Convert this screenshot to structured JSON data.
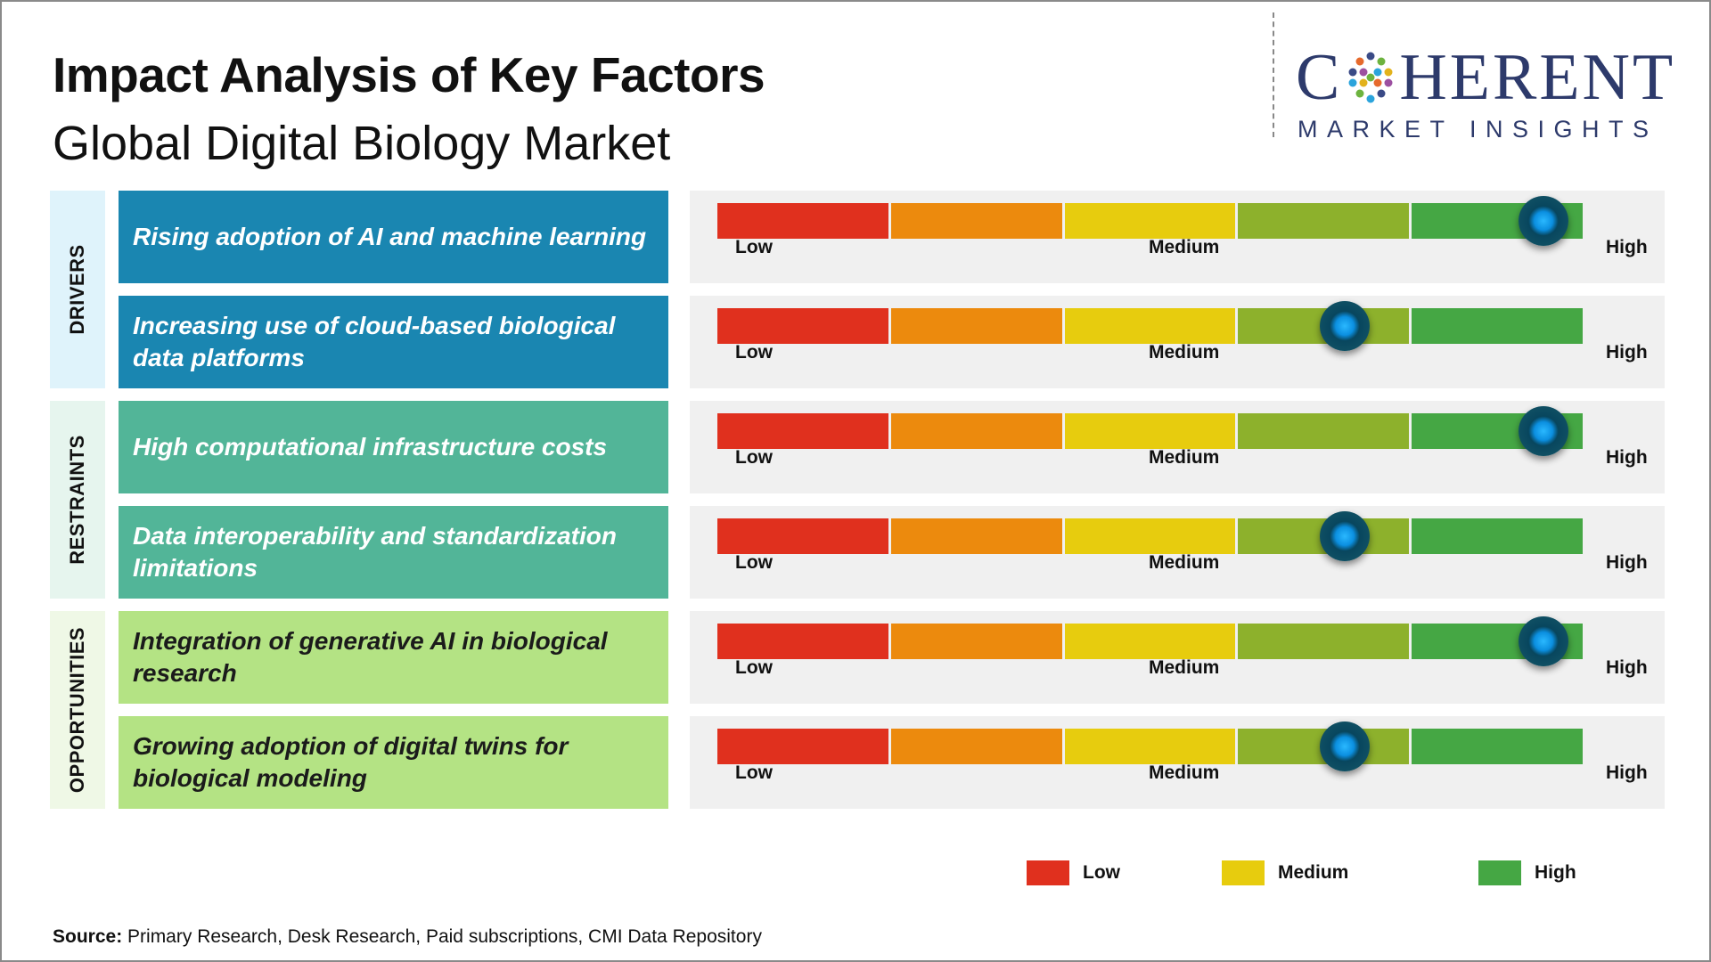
{
  "title": "Impact Analysis of Key Factors",
  "subtitle": "Global Digital Biology Market",
  "logo": {
    "word_left": "C",
    "word_right": "HERENT",
    "tagline": "MARKET INSIGHTS"
  },
  "colors": {
    "scale": [
      "#e0301e",
      "#ec8a0d",
      "#e7cc0e",
      "#8db12c",
      "#45a744"
    ],
    "drivers_box": "#1a86b1",
    "drivers_label_bg": "#dff3fb",
    "restraints_box": "#52b598",
    "restraints_label_bg": "#e6f5ee",
    "opportunities_box": "#b4e384",
    "opportunities_label_bg": "#eff8e6",
    "knob": "#0b8fe0"
  },
  "groups": [
    {
      "label": "DRIVERS",
      "factors": [
        {
          "text": "Rising adoption of AI and machine learning",
          "impact": 0.955
        },
        {
          "text": "Increasing use of cloud-based biological data platforms",
          "impact": 0.725
        }
      ]
    },
    {
      "label": "RESTRAINTS",
      "factors": [
        {
          "text": "High computational infrastructure costs",
          "impact": 0.955
        },
        {
          "text": "Data interoperability and standardization limitations",
          "impact": 0.725
        }
      ]
    },
    {
      "label": "OPPORTUNITIES",
      "factors": [
        {
          "text": "Integration of generative AI in biological research",
          "impact": 0.955
        },
        {
          "text": "Growing adoption of digital twins for biological modeling",
          "impact": 0.725
        }
      ]
    }
  ],
  "scale_labels": {
    "low": "Low",
    "medium": "Medium",
    "high": "High"
  },
  "legend": [
    {
      "label": "Low",
      "color": "#e0301e"
    },
    {
      "label": "Medium",
      "color": "#e7cc0e"
    },
    {
      "label": "High",
      "color": "#45a744"
    }
  ],
  "source": {
    "prefix": "Source:",
    "text": " Primary Research, Desk Research, Paid subscriptions, CMI Data Repository"
  },
  "chart_data": {
    "type": "table",
    "title": "Impact Analysis of Key Factors",
    "subtitle": "Global Digital Biology Market",
    "scale": [
      "Low",
      "Medium",
      "High"
    ],
    "rows": [
      {
        "category": "DRIVERS",
        "factor": "Rising adoption of AI and machine learning",
        "impact_position": 0.955,
        "impact": "High"
      },
      {
        "category": "DRIVERS",
        "factor": "Increasing use of cloud-based biological data platforms",
        "impact_position": 0.725,
        "impact": "Medium-High"
      },
      {
        "category": "RESTRAINTS",
        "factor": "High computational infrastructure costs",
        "impact_position": 0.955,
        "impact": "High"
      },
      {
        "category": "RESTRAINTS",
        "factor": "Data interoperability and standardization limitations",
        "impact_position": 0.725,
        "impact": "Medium-High"
      },
      {
        "category": "OPPORTUNITIES",
        "factor": "Integration of generative AI in biological research",
        "impact_position": 0.955,
        "impact": "High"
      },
      {
        "category": "OPPORTUNITIES",
        "factor": "Growing adoption of digital twins for biological modeling",
        "impact_position": 0.725,
        "impact": "Medium-High"
      }
    ]
  }
}
